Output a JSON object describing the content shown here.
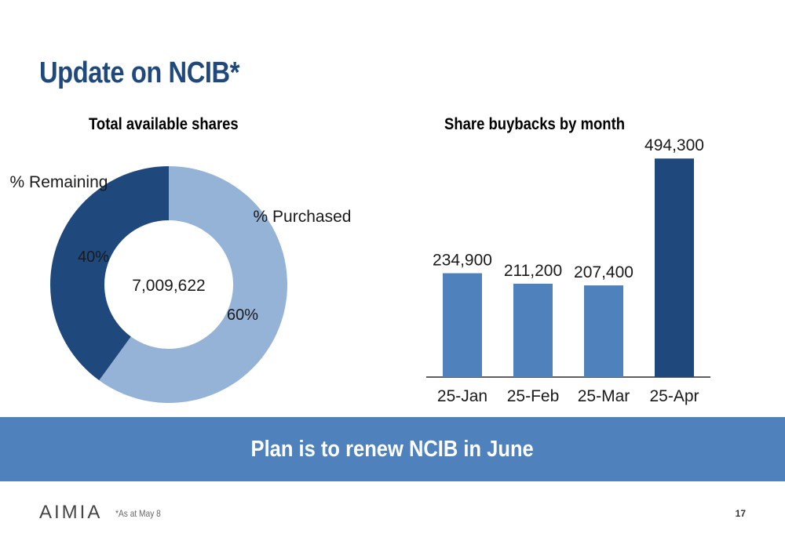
{
  "slide": {
    "title": "Update on NCIB*",
    "banner": "Plan is to renew NCIB in June",
    "footnote": "*As at May 8",
    "page_number": "17",
    "logo_text": "AIMIA"
  },
  "colors": {
    "dark_blue": "#1f497d",
    "light_blue": "#95b3d7",
    "bar_blue": "#4f81bd",
    "banner_blue": "#4f81bd"
  },
  "chart_data": [
    {
      "type": "pie",
      "title": "Total available shares",
      "center_label": "7,009,622",
      "slices": [
        {
          "name": "% Purchased",
          "value": 60,
          "label": "60%",
          "color": "#95b3d7"
        },
        {
          "name": "% Remaining",
          "value": 40,
          "label": "40%",
          "color": "#1f497d"
        }
      ]
    },
    {
      "type": "bar",
      "title": "Share buybacks by month",
      "categories": [
        "25-Jan",
        "25-Feb",
        "25-Mar",
        "25-Apr"
      ],
      "values": [
        234900,
        211200,
        207400,
        494300
      ],
      "value_labels": [
        "234,900",
        "211,200",
        "207,400",
        "494,300"
      ],
      "colors": [
        "#4f81bd",
        "#4f81bd",
        "#4f81bd",
        "#1f497d"
      ],
      "ylim": [
        0,
        500000
      ],
      "grid": false
    }
  ]
}
